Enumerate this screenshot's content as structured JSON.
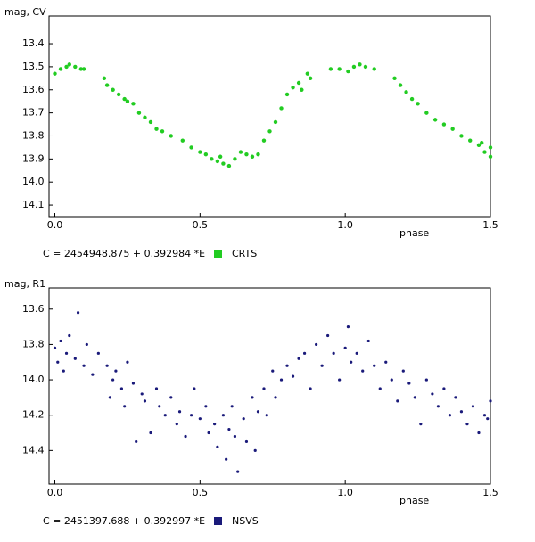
{
  "chart_data": [
    {
      "type": "scatter",
      "y_label": "mag, CV",
      "x_label": "phase",
      "annotation": "C = 2454948.875 + 0.392984 *E",
      "xlim": [
        -0.02,
        1.5
      ],
      "xticks": [
        {
          "value": 0,
          "label": "0.0"
        },
        0.5,
        {
          "value": 1,
          "label": "1.0"
        },
        1.5
      ],
      "ylim": [
        14.15,
        13.28
      ],
      "yticks": [
        13.4,
        13.5,
        13.6,
        13.7,
        13.8,
        13.9,
        {
          "value": 14,
          "label": "14.0"
        },
        14.1
      ],
      "series": [
        {
          "name": "CRTS",
          "color": "#22cc22",
          "x": [
            0.0,
            0.02,
            0.04,
            0.05,
            0.07,
            0.09,
            0.1,
            0.17,
            0.18,
            0.2,
            0.22,
            0.24,
            0.25,
            0.27,
            0.29,
            0.31,
            0.33,
            0.35,
            0.37,
            0.4,
            0.44,
            0.47,
            0.5,
            0.52,
            0.54,
            0.56,
            0.57,
            0.58,
            0.6,
            0.62,
            0.64,
            0.66,
            0.68,
            0.7,
            0.72,
            0.74,
            0.76,
            0.78,
            0.8,
            0.82,
            0.84,
            0.85,
            0.87,
            0.88,
            0.95,
            0.98,
            1.01,
            1.03,
            1.05,
            1.07,
            1.1,
            1.17,
            1.19,
            1.21,
            1.23,
            1.25,
            1.28,
            1.31,
            1.34,
            1.37,
            1.4,
            1.43,
            1.46,
            1.47,
            1.48,
            1.5,
            1.5
          ],
          "values": [
            13.53,
            13.51,
            13.5,
            13.49,
            13.5,
            13.51,
            13.51,
            13.55,
            13.58,
            13.6,
            13.62,
            13.64,
            13.65,
            13.66,
            13.7,
            13.72,
            13.74,
            13.77,
            13.78,
            13.8,
            13.82,
            13.85,
            13.87,
            13.88,
            13.9,
            13.91,
            13.89,
            13.92,
            13.93,
            13.9,
            13.87,
            13.88,
            13.89,
            13.88,
            13.82,
            13.78,
            13.74,
            13.68,
            13.62,
            13.59,
            13.57,
            13.6,
            13.53,
            13.55,
            13.51,
            13.51,
            13.52,
            13.5,
            13.49,
            13.5,
            13.51,
            13.55,
            13.58,
            13.61,
            13.64,
            13.66,
            13.7,
            13.73,
            13.75,
            13.77,
            13.8,
            13.82,
            13.84,
            13.83,
            13.87,
            13.89,
            13.85
          ]
        }
      ]
    },
    {
      "type": "scatter",
      "y_label": "mag, R1",
      "x_label": "phase",
      "annotation": "C = 2451397.688 + 0.392997 *E",
      "xlim": [
        -0.02,
        1.5
      ],
      "xticks": [
        {
          "value": 0,
          "label": "0.0"
        },
        0.5,
        {
          "value": 1,
          "label": "1.0"
        },
        1.5
      ],
      "ylim": [
        14.59,
        13.48
      ],
      "yticks": [
        13.6,
        13.8,
        {
          "value": 14,
          "label": "14.0"
        },
        14.2,
        14.4
      ],
      "series": [
        {
          "name": "NSVS",
          "color": "#1a1a7a",
          "x": [
            0.0,
            0.01,
            0.02,
            0.03,
            0.04,
            0.05,
            0.07,
            0.08,
            0.1,
            0.11,
            0.13,
            0.15,
            0.18,
            0.19,
            0.2,
            0.21,
            0.23,
            0.24,
            0.25,
            0.27,
            0.28,
            0.3,
            0.31,
            0.33,
            0.35,
            0.36,
            0.38,
            0.4,
            0.42,
            0.43,
            0.45,
            0.47,
            0.48,
            0.5,
            0.52,
            0.53,
            0.55,
            0.56,
            0.58,
            0.59,
            0.6,
            0.61,
            0.62,
            0.63,
            0.65,
            0.66,
            0.68,
            0.69,
            0.7,
            0.72,
            0.73,
            0.75,
            0.76,
            0.78,
            0.8,
            0.82,
            0.84,
            0.86,
            0.88,
            0.9,
            0.92,
            0.94,
            0.96,
            0.98,
            1.0,
            1.01,
            1.02,
            1.04,
            1.06,
            1.08,
            1.1,
            1.12,
            1.14,
            1.16,
            1.18,
            1.2,
            1.22,
            1.24,
            1.26,
            1.28,
            1.3,
            1.32,
            1.34,
            1.36,
            1.38,
            1.4,
            1.42,
            1.44,
            1.46,
            1.48,
            1.49,
            1.5
          ],
          "values": [
            13.82,
            13.9,
            13.78,
            13.95,
            13.85,
            13.75,
            13.88,
            13.62,
            13.92,
            13.8,
            13.97,
            13.85,
            13.92,
            14.1,
            14.0,
            13.95,
            14.05,
            14.15,
            13.9,
            14.02,
            14.35,
            14.08,
            14.12,
            14.3,
            14.05,
            14.15,
            14.2,
            14.1,
            14.25,
            14.18,
            14.32,
            14.2,
            14.05,
            14.22,
            14.15,
            14.3,
            14.25,
            14.38,
            14.2,
            14.45,
            14.28,
            14.15,
            14.32,
            14.52,
            14.22,
            14.35,
            14.1,
            14.4,
            14.18,
            14.05,
            14.2,
            13.95,
            14.1,
            14.0,
            13.92,
            13.98,
            13.88,
            13.85,
            14.05,
            13.8,
            13.92,
            13.75,
            13.85,
            14.0,
            13.82,
            13.7,
            13.9,
            13.85,
            13.95,
            13.78,
            13.92,
            14.05,
            13.9,
            14.0,
            14.12,
            13.95,
            14.02,
            14.1,
            14.25,
            14.0,
            14.08,
            14.15,
            14.05,
            14.2,
            14.1,
            14.18,
            14.25,
            14.15,
            14.3,
            14.2,
            14.22,
            14.12
          ]
        }
      ]
    }
  ]
}
